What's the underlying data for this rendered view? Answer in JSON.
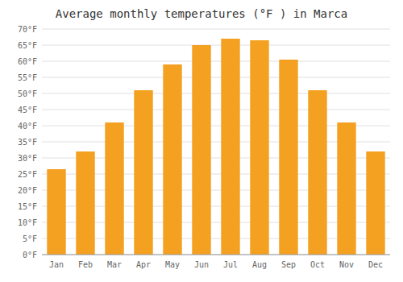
{
  "chart_data": {
    "type": "bar",
    "title": "Average monthly temperatures (°F ) in Marca",
    "categories": [
      "Jan",
      "Feb",
      "Mar",
      "Apr",
      "May",
      "Jun",
      "Jul",
      "Aug",
      "Sep",
      "Oct",
      "Nov",
      "Dec"
    ],
    "values": [
      26.5,
      32,
      41,
      51,
      59,
      65,
      67,
      66.5,
      60.5,
      51,
      41,
      32
    ],
    "color": "#F4A020",
    "ylim": [
      0,
      70
    ],
    "yticks": [
      {
        "value": 0,
        "label": "0°F"
      },
      {
        "value": 5,
        "label": "5°F"
      },
      {
        "value": 10,
        "label": "10°F"
      },
      {
        "value": 15,
        "label": "15°F"
      },
      {
        "value": 20,
        "label": "20°F"
      },
      {
        "value": 25,
        "label": "25°F"
      },
      {
        "value": 30,
        "label": "30°F"
      },
      {
        "value": 35,
        "label": "35°F"
      },
      {
        "value": 40,
        "label": "40°F"
      },
      {
        "value": 45,
        "label": "45°F"
      },
      {
        "value": 50,
        "label": "50°F"
      },
      {
        "value": 55,
        "label": "55°F"
      },
      {
        "value": 60,
        "label": "60°F"
      },
      {
        "value": 65,
        "label": "65°F"
      },
      {
        "value": 70,
        "label": "70°F"
      }
    ],
    "grid": true
  }
}
